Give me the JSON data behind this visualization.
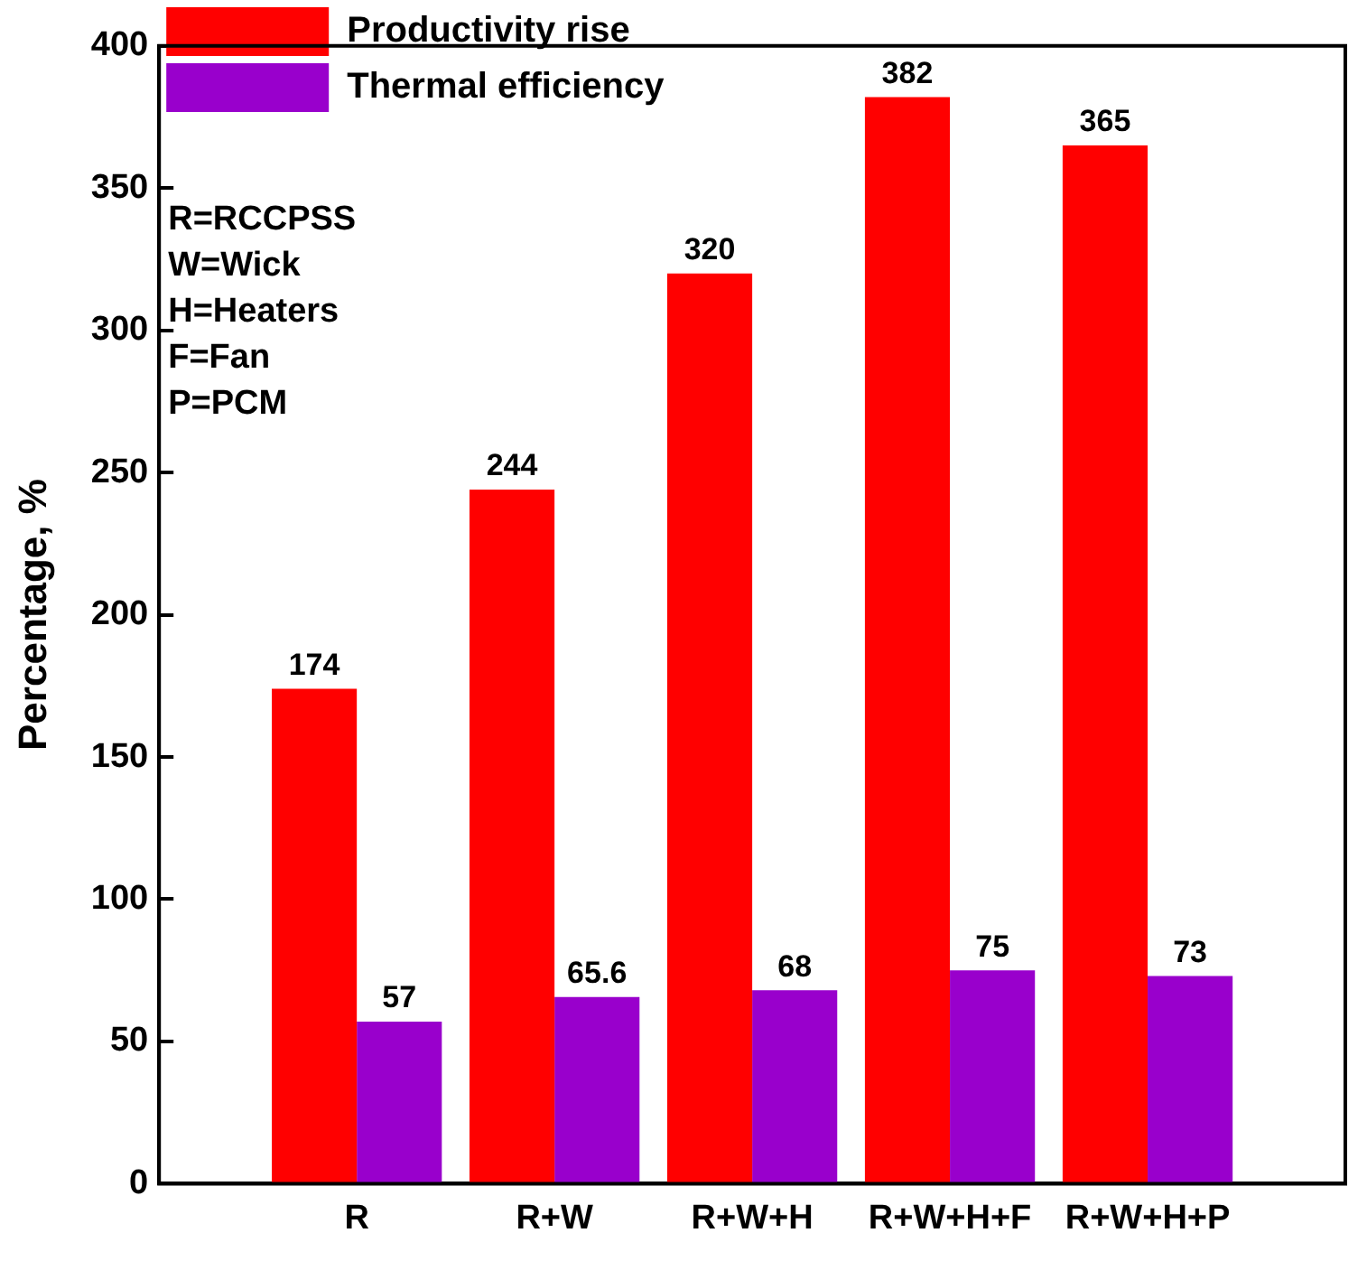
{
  "chart_data": {
    "type": "bar",
    "ylabel": "Percentage, %",
    "categories": [
      "R",
      "R+W",
      "R+W+H",
      "R+W+H+F",
      "R+W+H+P"
    ],
    "series": [
      {
        "name": "Productivity rise",
        "color": "#ff0000",
        "values": [
          174,
          244,
          320,
          382,
          365
        ]
      },
      {
        "name": "Thermal efficiency",
        "color": "#9900cc",
        "values": [
          57,
          65.6,
          68,
          75,
          73
        ]
      }
    ],
    "ylim": [
      0,
      400
    ],
    "yticks": [
      0,
      50,
      100,
      150,
      200,
      250,
      300,
      350,
      400
    ],
    "grid": false,
    "legend": "top left",
    "data_labels": true,
    "annotations": [
      "R=RCCPSS",
      "W=Wick",
      "H=Heaters",
      "F=Fan",
      "P=PCM"
    ]
  }
}
